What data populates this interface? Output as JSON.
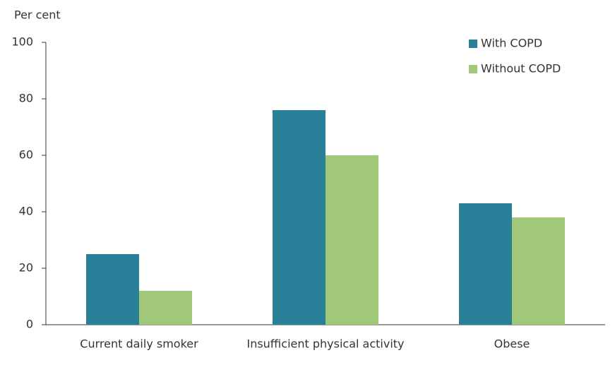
{
  "chart_data": {
    "type": "bar",
    "y_label": "Per cent",
    "categories": [
      "Current daily smoker",
      "Insufficient physical activity",
      "Obese"
    ],
    "series": [
      {
        "name": "With COPD",
        "color": "#2a7f99",
        "values": [
          25,
          76,
          43
        ]
      },
      {
        "name": "Without COPD",
        "color": "#a0c878",
        "values": [
          12,
          60,
          38
        ]
      }
    ],
    "ylim": [
      0,
      100
    ],
    "yticks": [
      0,
      20,
      40,
      60,
      80,
      100
    ],
    "grid": false,
    "legend": "top-right"
  }
}
